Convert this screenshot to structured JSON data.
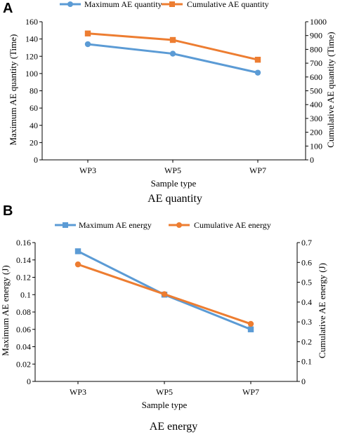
{
  "chart_data": [
    {
      "panel": "A",
      "type": "line",
      "title": "AE quantity",
      "xlabel": "Sample type",
      "ylabel_left": "Maximum AE quantity (Time)",
      "ylabel_right": "Cumulative AE quantity (Time)",
      "categories": [
        "WP3",
        "WP5",
        "WP7"
      ],
      "y_left": {
        "lim": [
          0,
          160
        ],
        "ticks": [
          "0",
          "20",
          "40",
          "60",
          "80",
          "100",
          "120",
          "140",
          "160"
        ]
      },
      "y_right": {
        "lim": [
          0,
          1000
        ],
        "ticks": [
          "0",
          "100",
          "200",
          "300",
          "400",
          "500",
          "600",
          "700",
          "800",
          "900",
          "1000"
        ]
      },
      "legend_position": "top",
      "series": [
        {
          "name": "Maximum AE quantity",
          "axis": "left",
          "marker": "circle",
          "color": "#5B9BD5",
          "values": [
            134,
            123,
            101
          ]
        },
        {
          "name": "Cumulative AE quantity",
          "axis": "right",
          "marker": "square",
          "color": "#ED7D31",
          "values": [
            915,
            868,
            725
          ]
        }
      ]
    },
    {
      "panel": "B",
      "type": "line",
      "title": "AE energy",
      "xlabel": "Sample type",
      "ylabel_left": "Maximum AE energy (J)",
      "ylabel_right": "Cumulative AE energy (J)",
      "categories": [
        "WP3",
        "WP5",
        "WP7"
      ],
      "y_left": {
        "lim": [
          0,
          0.16
        ],
        "ticks": [
          "0",
          "0.02",
          "0.04",
          "0.06",
          "0.08",
          "0.1",
          "0.12",
          "0.14",
          "0.16"
        ]
      },
      "y_right": {
        "lim": [
          0,
          0.7
        ],
        "ticks": [
          "0",
          "0.1",
          "0.2",
          "0.3",
          "0.4",
          "0.5",
          "0.6",
          "0.7"
        ]
      },
      "legend_position": "top",
      "series": [
        {
          "name": "Maximum AE energy",
          "axis": "left",
          "marker": "square",
          "color": "#5B9BD5",
          "values": [
            0.15,
            0.1,
            0.06
          ]
        },
        {
          "name": "Cumulative AE energy",
          "axis": "right",
          "marker": "circle",
          "color": "#ED7D31",
          "values": [
            0.59,
            0.44,
            0.29
          ]
        }
      ]
    }
  ]
}
